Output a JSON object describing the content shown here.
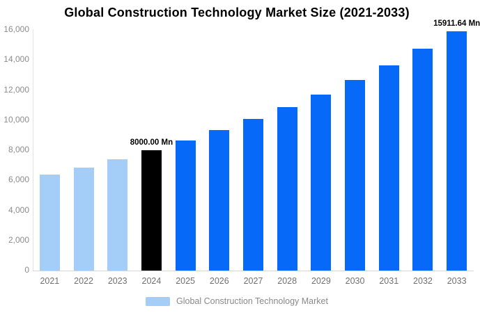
{
  "title": "Global Construction Technology Market Size (2021-2033)",
  "legend": {
    "label": "Global Construction Technology Market"
  },
  "colors": {
    "bar_history": "#a4cdf8",
    "bar_current": "#000000",
    "bar_forecast": "#0669f7",
    "y_axis_line": "#e2e2e2",
    "x_axis_line": "#d6d6d6",
    "y_tick_text": "#8c8c8c",
    "x_tick_text": "#707070",
    "legend_text": "#8a8a8a",
    "annotation_text": "#000000",
    "title_text": "#000000",
    "background": "#ffffff"
  },
  "chart_data": {
    "type": "bar",
    "title": "Global Construction Technology Market Size (2021-2033)",
    "unit": "Mn",
    "categories": [
      "2021",
      "2022",
      "2023",
      "2024",
      "2025",
      "2026",
      "2027",
      "2028",
      "2029",
      "2030",
      "2031",
      "2032",
      "2033"
    ],
    "values": [
      6361.34,
      6866.41,
      7411.56,
      8000.0,
      8635.17,
      9320.75,
      10060.78,
      10859.55,
      11721.66,
      12652.31,
      13656.84,
      14741.13,
      15911.64
    ],
    "bar_colors": [
      "#a4cdf8",
      "#a4cdf8",
      "#a4cdf8",
      "#000000",
      "#0669f7",
      "#0669f7",
      "#0669f7",
      "#0669f7",
      "#0669f7",
      "#0669f7",
      "#0669f7",
      "#0669f7",
      "#0669f7"
    ],
    "xlabel": "",
    "ylabel": "",
    "ylim": [
      0,
      16000
    ],
    "ytick_interval": 2000,
    "ytick_labels": [
      "0",
      "2,000",
      "4,000",
      "6,000",
      "8,000",
      "10,000",
      "12,000",
      "14,000",
      "16,000"
    ],
    "grid": false,
    "legend_entries": [
      "Global Construction Technology Market"
    ],
    "legend_position": "bottom",
    "annotations": [
      {
        "category": "2024",
        "text": "8000.00 Mn"
      },
      {
        "category": "2033",
        "text": "15911.64 Mn"
      }
    ]
  }
}
